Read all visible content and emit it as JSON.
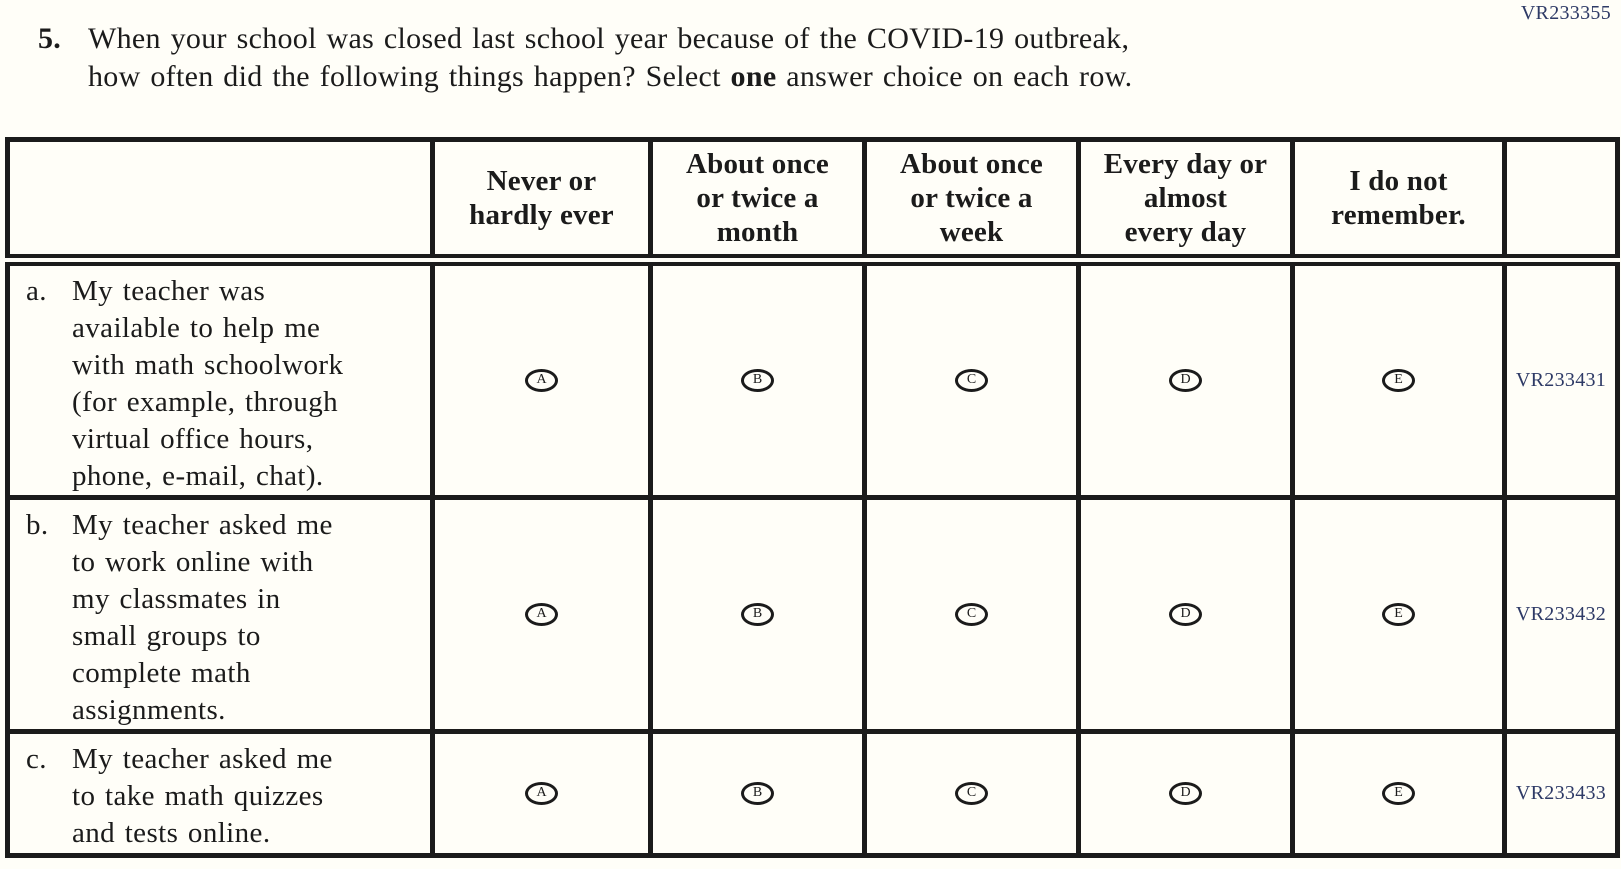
{
  "form_code_top": "VR233355",
  "colors": {
    "ink": "#1b1b1b",
    "code_blue": "#2e3a66",
    "paper": "#fffef8"
  },
  "question": {
    "number": "5.",
    "line1": "When your school was closed last school year because of the COVID-19 outbreak,",
    "line2_before_bold": "how often did the following things happen? Select ",
    "line2_bold": "one",
    "line2_after_bold": " answer choice on each row."
  },
  "table": {
    "headers": [
      {
        "lines": [
          "Never or",
          "hardly ever"
        ]
      },
      {
        "lines": [
          "About once",
          "or twice a",
          "month"
        ]
      },
      {
        "lines": [
          "About once",
          "or twice a",
          "week"
        ]
      },
      {
        "lines": [
          "Every day or",
          "almost",
          "every day"
        ]
      },
      {
        "lines": [
          "I do not",
          "remember."
        ]
      }
    ],
    "answer_letters": [
      "A",
      "B",
      "C",
      "D",
      "E"
    ],
    "rows": [
      {
        "label": "a.",
        "lines": [
          "My teacher was",
          "available to help me",
          "with math schoolwork",
          "(for example, through",
          "virtual office hours,",
          "phone, e-mail, chat)."
        ],
        "vr_code": "VR233431"
      },
      {
        "label": "b.",
        "lines": [
          "My teacher asked me",
          "to work online with",
          "my classmates in",
          "small groups to",
          "complete math",
          "assignments."
        ],
        "vr_code": "VR233432"
      },
      {
        "label": "c.",
        "lines": [
          "My teacher asked me",
          "to take math quizzes",
          "and tests online."
        ],
        "vr_code": "VR233433"
      }
    ]
  }
}
